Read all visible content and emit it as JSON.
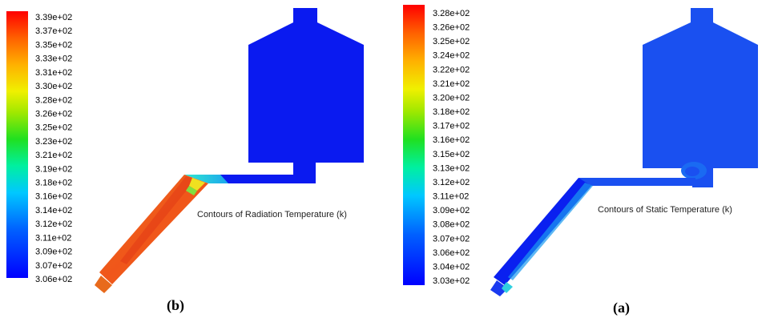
{
  "panels": [
    {
      "id": "b",
      "caption": "(b)",
      "title": "Contours of Radiation Temperature (k)",
      "colorbar_labels": [
        "3.39e+02",
        "3.37e+02",
        "3.35e+02",
        "3.33e+02",
        "3.31e+02",
        "3.30e+02",
        "3.28e+02",
        "3.26e+02",
        "3.25e+02",
        "3.23e+02",
        "3.21e+02",
        "3.19e+02",
        "3.18e+02",
        "3.16e+02",
        "3.14e+02",
        "3.12e+02",
        "3.11e+02",
        "3.09e+02",
        "3.07e+02",
        "3.06e+02"
      ]
    },
    {
      "id": "a",
      "caption": "(a)",
      "title": "Contours of Static Temperature (k)",
      "colorbar_labels": [
        "3.28e+02",
        "3.26e+02",
        "3.25e+02",
        "3.24e+02",
        "3.22e+02",
        "3.21e+02",
        "3.20e+02",
        "3.18e+02",
        "3.17e+02",
        "3.16e+02",
        "3.15e+02",
        "3.13e+02",
        "3.12e+02",
        "3.11e+02",
        "3.09e+02",
        "3.08e+02",
        "3.07e+02",
        "3.06e+02",
        "3.04e+02",
        "3.03e+02"
      ]
    }
  ],
  "colors": {
    "domain_blue": "#0a1af0",
    "domain_blue_light": "#1a5cf5",
    "hot_orange": "#f0641e",
    "hot_red": "#e02a14"
  }
}
